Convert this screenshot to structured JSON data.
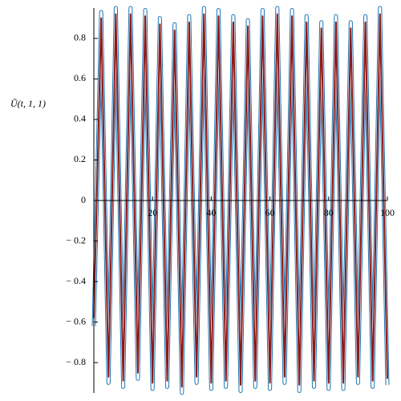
{
  "chart_data": {
    "type": "line",
    "y_label": "Ũ(t, 1, 1)",
    "x": [
      0,
      2.5,
      5,
      7.5,
      10,
      12.5,
      15,
      17.5,
      20,
      22.5,
      25,
      27.5,
      30,
      32.5,
      35,
      37.5,
      40,
      42.5,
      45,
      47.5,
      50,
      52.5,
      55,
      57.5,
      60,
      62.5,
      65,
      67.5,
      70,
      72.5,
      75,
      77.5,
      80,
      82.5,
      85,
      87.5,
      90,
      92.5,
      95,
      97.5,
      100
    ],
    "series": [
      {
        "color": "#1f77b4",
        "values": [
          -0.62,
          0.93,
          -0.9,
          0.95,
          -0.92,
          0.95,
          -0.88,
          0.94,
          -0.93,
          0.9,
          -0.92,
          0.87,
          -0.95,
          0.91,
          -0.9,
          0.95,
          -0.93,
          0.94,
          -0.92,
          0.91,
          -0.94,
          0.89,
          -0.92,
          0.94,
          -0.93,
          0.95,
          -0.9,
          0.94,
          -0.94,
          0.91,
          -0.92,
          0.88,
          -0.93,
          0.91,
          -0.93,
          0.88,
          -0.9,
          0.91,
          -0.92,
          0.95,
          -0.91
        ]
      },
      {
        "color": "#8b1a1a",
        "values": [
          -0.58,
          0.9,
          -0.87,
          0.92,
          -0.89,
          0.92,
          -0.85,
          0.91,
          -0.9,
          0.87,
          -0.89,
          0.84,
          -0.92,
          0.88,
          -0.87,
          0.92,
          -0.9,
          0.91,
          -0.89,
          0.88,
          -0.91,
          0.86,
          -0.89,
          0.91,
          -0.9,
          0.92,
          -0.87,
          0.91,
          -0.91,
          0.88,
          -0.89,
          0.85,
          -0.9,
          0.88,
          -0.9,
          0.85,
          -0.87,
          0.88,
          -0.89,
          0.92,
          -0.88
        ]
      }
    ],
    "xlim": [
      0,
      100
    ],
    "ylim": [
      -0.95,
      0.95
    ],
    "xticks": [
      20,
      40,
      60,
      80,
      100
    ],
    "yticks": [
      {
        "value": -0.8,
        "label": "− 0.8"
      },
      {
        "value": -0.6,
        "label": "− 0.6"
      },
      {
        "value": -0.4,
        "label": "− 0.4"
      },
      {
        "value": -0.2,
        "label": "− 0.2"
      },
      0,
      0.2,
      0.4,
      0.6,
      0.8
    ]
  }
}
